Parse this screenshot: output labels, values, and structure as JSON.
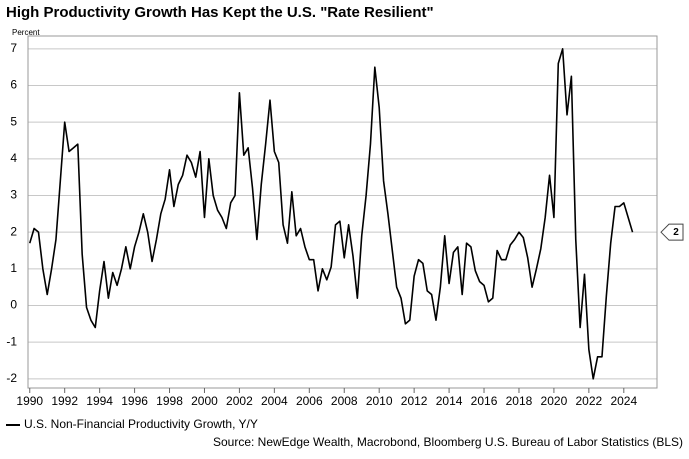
{
  "chart_data": {
    "type": "line",
    "title": "High Productivity Growth Has Kept the U.S. \"Rate Resilient\"",
    "y_unit": "Percent",
    "source": "Source: NewEdge Wealth, Macrobond, Bloomberg U.S. Bureau of Labor Statistics (BLS)",
    "x": [
      1990,
      1990.25,
      1990.5,
      1990.75,
      1991,
      1991.25,
      1991.5,
      1991.75,
      1992,
      1992.25,
      1992.5,
      1992.75,
      1993,
      1993.25,
      1993.5,
      1993.75,
      1994,
      1994.25,
      1994.5,
      1994.75,
      1995,
      1995.25,
      1995.5,
      1995.75,
      1996,
      1996.25,
      1996.5,
      1996.75,
      1997,
      1997.25,
      1997.5,
      1997.75,
      1998,
      1998.25,
      1998.5,
      1998.75,
      1999,
      1999.25,
      1999.5,
      1999.75,
      2000,
      2000.25,
      2000.5,
      2000.75,
      2001,
      2001.25,
      2001.5,
      2001.75,
      2002,
      2002.25,
      2002.5,
      2002.75,
      2003,
      2003.25,
      2003.5,
      2003.75,
      2004,
      2004.25,
      2004.5,
      2004.75,
      2005,
      2005.25,
      2005.5,
      2005.75,
      2006,
      2006.25,
      2006.5,
      2006.75,
      2007,
      2007.25,
      2007.5,
      2007.75,
      2008,
      2008.25,
      2008.5,
      2008.75,
      2009,
      2009.25,
      2009.5,
      2009.75,
      2010,
      2010.25,
      2010.5,
      2010.75,
      2011,
      2011.25,
      2011.5,
      2011.75,
      2012,
      2012.25,
      2012.5,
      2012.75,
      2013,
      2013.25,
      2013.5,
      2013.75,
      2014,
      2014.25,
      2014.5,
      2014.75,
      2015,
      2015.25,
      2015.5,
      2015.75,
      2016,
      2016.25,
      2016.5,
      2016.75,
      2017,
      2017.25,
      2017.5,
      2017.75,
      2018,
      2018.25,
      2018.5,
      2018.75,
      2019,
      2019.25,
      2019.5,
      2019.75,
      2020,
      2020.25,
      2020.5,
      2020.75,
      2021,
      2021.25,
      2021.5,
      2021.75,
      2022,
      2022.25,
      2022.5,
      2022.75,
      2023,
      2023.25,
      2023.5,
      2023.75,
      2024,
      2024.25,
      2024.5
    ],
    "series": [
      {
        "name": "U.S. Non-Financial Productivity Growth, Y/Y",
        "color": "#000000",
        "values": [
          1.7,
          2.1,
          2.0,
          1.0,
          0.3,
          1.0,
          1.8,
          3.4,
          5.0,
          4.2,
          4.3,
          4.4,
          1.4,
          -0.05,
          -0.4,
          -0.6,
          0.4,
          1.2,
          0.2,
          0.9,
          0.55,
          1.0,
          1.6,
          1.0,
          1.6,
          2.0,
          2.5,
          2.0,
          1.2,
          1.8,
          2.5,
          2.9,
          3.7,
          2.7,
          3.3,
          3.55,
          4.1,
          3.9,
          3.5,
          4.2,
          2.4,
          4.0,
          3.0,
          2.6,
          2.4,
          2.1,
          2.8,
          3.0,
          5.8,
          4.1,
          4.3,
          3.2,
          1.8,
          3.3,
          4.4,
          5.6,
          4.2,
          3.9,
          2.2,
          1.7,
          3.1,
          1.9,
          2.1,
          1.6,
          1.25,
          1.25,
          0.4,
          1.0,
          0.7,
          1.05,
          2.2,
          2.3,
          1.3,
          2.2,
          1.35,
          0.2,
          1.9,
          3.0,
          4.4,
          6.5,
          5.4,
          3.4,
          2.5,
          1.5,
          0.5,
          0.2,
          -0.5,
          -0.4,
          0.8,
          1.25,
          1.15,
          0.4,
          0.3,
          -0.4,
          0.5,
          1.9,
          0.6,
          1.45,
          1.6,
          0.3,
          1.7,
          1.6,
          0.95,
          0.65,
          0.55,
          0.1,
          0.2,
          1.5,
          1.25,
          1.25,
          1.65,
          1.8,
          2.0,
          1.85,
          1.3,
          0.5,
          1.0,
          1.55,
          2.4,
          3.55,
          2.4,
          6.6,
          7.0,
          5.2,
          6.25,
          1.8,
          -0.6,
          0.85,
          -1.2,
          -2.0,
          -1.4,
          -1.4,
          0.25,
          1.7,
          2.7,
          2.7,
          2.8,
          2.4,
          2.0
        ]
      }
    ],
    "xlim": [
      1989.9,
      2025.9
    ],
    "ylim": [
      -2.25,
      7.35
    ],
    "xticks": [
      1990,
      1992,
      1994,
      1996,
      1998,
      2000,
      2002,
      2004,
      2006,
      2008,
      2010,
      2012,
      2014,
      2016,
      2018,
      2020,
      2022,
      2024
    ],
    "yticks": [
      -2,
      -1,
      0,
      1,
      2,
      3,
      4,
      5,
      6,
      7
    ],
    "grid": true
  }
}
